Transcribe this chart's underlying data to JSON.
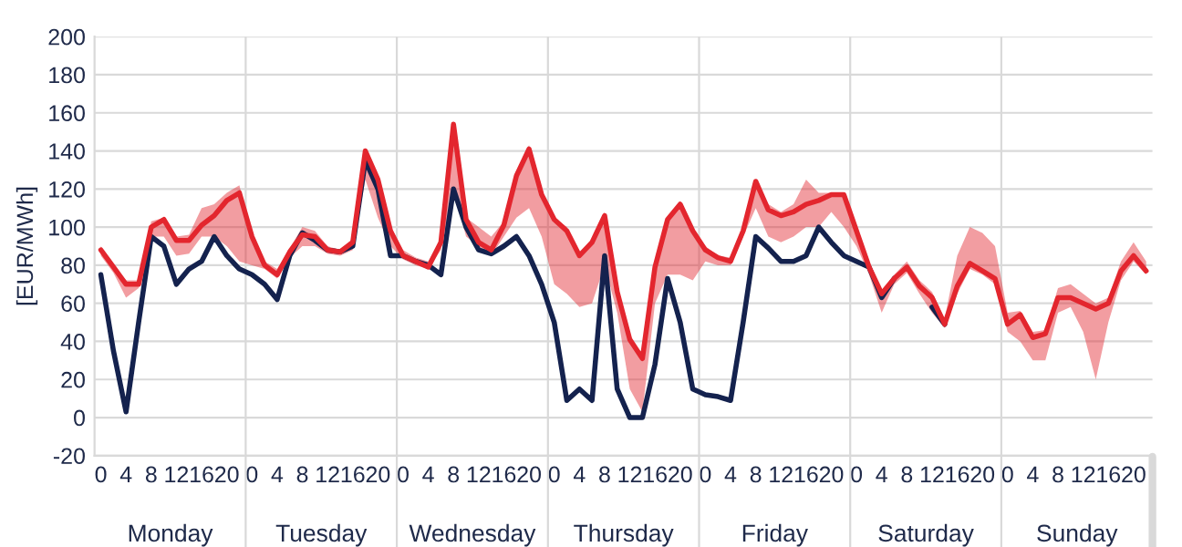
{
  "chart_data": {
    "type": "line",
    "ylabel": "[EUR/MWh]",
    "categories": [
      "0",
      null,
      "4",
      null,
      "8",
      null,
      "12",
      null,
      "16",
      null,
      "20",
      null,
      "0",
      null,
      "4",
      null,
      "8",
      null,
      "12",
      null,
      "16",
      null,
      "20",
      null,
      "0",
      null,
      "4",
      null,
      "8",
      null,
      "12",
      null,
      "16",
      null,
      "20",
      null,
      "0",
      null,
      "4",
      null,
      "8",
      null,
      "12",
      null,
      "16",
      null,
      "20",
      null,
      "0",
      null,
      "4",
      null,
      "8",
      null,
      "12",
      null,
      "16",
      null,
      "20",
      null,
      "0",
      null,
      "4",
      null,
      "8",
      null,
      "12",
      null,
      "16",
      null,
      "20",
      null,
      "0",
      null,
      "4",
      null,
      "8",
      null,
      "12",
      null,
      "16",
      null,
      "20",
      null
    ],
    "series": [
      {
        "color": "#14224e",
        "values": [
          75,
          35,
          3,
          50,
          95,
          90,
          70,
          78,
          82,
          95,
          85,
          78,
          75,
          70,
          62,
          85,
          97,
          93,
          88,
          87,
          90,
          135,
          120,
          85,
          85,
          82,
          80,
          75,
          120,
          100,
          88,
          86,
          90,
          95,
          85,
          70,
          50,
          9,
          15,
          9,
          85,
          15,
          0,
          0,
          28,
          73,
          50,
          15,
          12,
          11,
          9,
          50,
          95,
          89,
          82,
          82,
          85,
          100,
          92,
          85,
          82,
          79,
          63,
          73,
          null,
          null,
          58,
          49,
          null,
          null,
          null,
          null,
          null,
          null,
          null,
          null,
          null,
          null,
          null,
          null,
          null,
          null,
          null,
          null
        ]
      },
      {
        "color": "#e3262e",
        "values": [
          88,
          79,
          70,
          70,
          100,
          104,
          93,
          93,
          101,
          106,
          114,
          118,
          95,
          80,
          75,
          87,
          96,
          95,
          88,
          87,
          92,
          140,
          125,
          98,
          85,
          82,
          79,
          92,
          154,
          104,
          92,
          88,
          101,
          127,
          141,
          117,
          104,
          98,
          85,
          92,
          106,
          66,
          41,
          31,
          79,
          104,
          112,
          98,
          88,
          84,
          82,
          98,
          124,
          109,
          106,
          108,
          112,
          114,
          117,
          117,
          98,
          79,
          65,
          73,
          79,
          69,
          63,
          49,
          69,
          81,
          77,
          73,
          49,
          54,
          42,
          44,
          63,
          63,
          60,
          57,
          60,
          77,
          85,
          77
        ],
        "lower": [
          85,
          76,
          63,
          68,
          95,
          95,
          85,
          86,
          95,
          95,
          90,
          82,
          80,
          78,
          73,
          84,
          90,
          90,
          86,
          85,
          88,
          125,
          105,
          90,
          83,
          80,
          78,
          88,
          120,
          95,
          90,
          85,
          95,
          105,
          110,
          95,
          70,
          65,
          58,
          60,
          80,
          55,
          15,
          3,
          60,
          75,
          75,
          72,
          82,
          80,
          80,
          95,
          110,
          95,
          92,
          95,
          100,
          100,
          108,
          100,
          90,
          75,
          55,
          70,
          76,
          65,
          55,
          47,
          65,
          78,
          75,
          70,
          45,
          40,
          30,
          30,
          55,
          58,
          45,
          20,
          50,
          72,
          82,
          75
        ],
        "upper": [
          90,
          80,
          72,
          72,
          103,
          105,
          95,
          96,
          110,
          112,
          118,
          122,
          96,
          82,
          78,
          89,
          100,
          98,
          90,
          88,
          94,
          141,
          126,
          100,
          88,
          84,
          82,
          94,
          155,
          105,
          100,
          95,
          103,
          128,
          143,
          118,
          105,
          100,
          86,
          94,
          108,
          68,
          42,
          32,
          80,
          105,
          113,
          100,
          90,
          85,
          84,
          100,
          125,
          112,
          108,
          112,
          125,
          118,
          118,
          118,
          100,
          80,
          67,
          75,
          82,
          72,
          66,
          52,
          85,
          100,
          97,
          90,
          55,
          56,
          45,
          46,
          68,
          70,
          65,
          60,
          63,
          82,
          92,
          82
        ]
      }
    ],
    "ylim": [
      -20,
      200
    ],
    "yticks": [
      -20,
      0,
      20,
      40,
      60,
      80,
      100,
      120,
      140,
      160,
      180,
      200
    ],
    "annotations": [
      "Monday",
      "Tuesday",
      "Wednesday",
      "Thursday",
      "Friday",
      "Saturday",
      "Sunday"
    ],
    "grid": "y",
    "legend": false
  }
}
